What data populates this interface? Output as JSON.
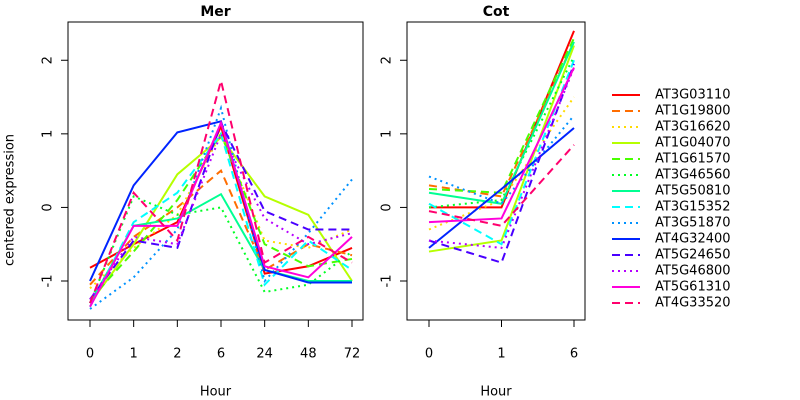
{
  "chart_data": [
    {
      "type": "line",
      "title": "Mer",
      "xlabel": "Hour",
      "ylabel": "centered expression",
      "categories": [
        "0",
        "1",
        "2",
        "6",
        "24",
        "48",
        "72"
      ],
      "ylim": [
        -1.53,
        2.52
      ],
      "yticks": [
        -1,
        0,
        1,
        2
      ],
      "series": [
        {
          "name": "AT3G03110",
          "color": "#FF0000",
          "dash": "solid",
          "values": [
            -0.82,
            -0.5,
            -0.2,
            1.1,
            -0.9,
            -0.8,
            -0.55
          ]
        },
        {
          "name": "AT1G19800",
          "color": "#FF6D00",
          "dash": "dashed",
          "values": [
            -1.05,
            -0.4,
            0.0,
            0.5,
            -0.85,
            -0.5,
            -0.65
          ]
        },
        {
          "name": "AT3G16620",
          "color": "#FFDB00",
          "dash": "dotted",
          "values": [
            -1.1,
            -0.55,
            -0.1,
            1.0,
            -0.45,
            -0.55,
            -0.3
          ]
        },
        {
          "name": "AT1G04070",
          "color": "#B6FF00",
          "dash": "solid",
          "values": [
            -1.3,
            -0.5,
            0.45,
            0.95,
            0.15,
            -0.1,
            -1.0
          ]
        },
        {
          "name": "AT1G61570",
          "color": "#49FF00",
          "dash": "dashed",
          "values": [
            -1.25,
            -0.6,
            0.1,
            1.0,
            -0.5,
            -0.8,
            -0.7
          ]
        },
        {
          "name": "AT3G46560",
          "color": "#00FF24",
          "dash": "dotted",
          "values": [
            -1.3,
            0.15,
            -0.1,
            0.0,
            -1.15,
            -1.05,
            -0.6
          ]
        },
        {
          "name": "AT5G50810",
          "color": "#00FF92",
          "dash": "solid",
          "values": [
            -1.3,
            -0.25,
            -0.15,
            0.18,
            -0.85,
            -1.0,
            -1.0
          ]
        },
        {
          "name": "AT3G15352",
          "color": "#00FFFF",
          "dash": "dashed",
          "values": [
            -1.35,
            -0.2,
            0.2,
            1.0,
            -1.05,
            -0.45,
            -0.85
          ]
        },
        {
          "name": "AT3G51870",
          "color": "#0092FF",
          "dash": "dotted",
          "values": [
            -1.38,
            -0.95,
            -0.3,
            1.35,
            -1.0,
            -0.35,
            0.38
          ]
        },
        {
          "name": "AT4G32400",
          "color": "#0024FF",
          "dash": "solid",
          "values": [
            -1.0,
            0.3,
            1.02,
            1.17,
            -0.85,
            -1.02,
            -1.02
          ]
        },
        {
          "name": "AT5G24650",
          "color": "#4900FF",
          "dash": "dashed",
          "values": [
            -1.25,
            -0.45,
            -0.55,
            1.15,
            -0.05,
            -0.3,
            -0.3
          ]
        },
        {
          "name": "AT5G46800",
          "color": "#B600FF",
          "dash": "dotted",
          "values": [
            -1.25,
            -0.4,
            -0.5,
            1.0,
            -0.15,
            -0.5,
            -0.35
          ]
        },
        {
          "name": "AT5G61310",
          "color": "#FF00DB",
          "dash": "solid",
          "values": [
            -1.35,
            -0.25,
            -0.25,
            1.15,
            -0.8,
            -0.95,
            -0.4
          ]
        },
        {
          "name": "AT4G33520",
          "color": "#FF006D",
          "dash": "dashed",
          "values": [
            -1.3,
            0.2,
            -0.45,
            1.72,
            -0.75,
            -0.4,
            -0.75
          ]
        }
      ]
    },
    {
      "type": "line",
      "title": "Cot",
      "xlabel": "Hour",
      "categories": [
        "0",
        "1",
        "6"
      ],
      "ylim": [
        -1.53,
        2.52
      ],
      "yticks": [
        -1,
        0,
        1,
        2
      ],
      "series": [
        {
          "color": "#FF0000",
          "dash": "solid",
          "values": [
            0.0,
            0.0,
            2.4
          ]
        },
        {
          "color": "#FF6D00",
          "dash": "dashed",
          "values": [
            0.3,
            0.15,
            2.25
          ]
        },
        {
          "color": "#FFDB00",
          "dash": "dotted",
          "values": [
            -0.3,
            0.1,
            1.5
          ]
        },
        {
          "color": "#B6FF00",
          "dash": "solid",
          "values": [
            -0.6,
            -0.45,
            2.2
          ]
        },
        {
          "color": "#49FF00",
          "dash": "dashed",
          "values": [
            0.25,
            0.2,
            2.3
          ]
        },
        {
          "color": "#00FF24",
          "dash": "dotted",
          "values": [
            0.0,
            0.1,
            2.05
          ]
        },
        {
          "color": "#00FF92",
          "dash": "solid",
          "values": [
            0.2,
            0.05,
            2.25
          ]
        },
        {
          "color": "#00FFFF",
          "dash": "dashed",
          "values": [
            0.05,
            -0.5,
            2.0
          ]
        },
        {
          "color": "#0092FF",
          "dash": "dotted",
          "values": [
            0.42,
            0.05,
            1.25
          ]
        },
        {
          "color": "#0024FF",
          "dash": "solid",
          "values": [
            -0.55,
            0.25,
            1.08
          ]
        },
        {
          "color": "#4900FF",
          "dash": "dashed",
          "values": [
            -0.45,
            -0.75,
            1.95
          ]
        },
        {
          "color": "#B600FF",
          "dash": "dotted",
          "values": [
            -0.45,
            -0.55,
            1.9
          ]
        },
        {
          "color": "#FF00DB",
          "dash": "solid",
          "values": [
            -0.2,
            -0.15,
            1.9
          ]
        },
        {
          "color": "#FF006D",
          "dash": "dashed",
          "values": [
            -0.05,
            -0.25,
            0.85
          ]
        }
      ]
    }
  ]
}
